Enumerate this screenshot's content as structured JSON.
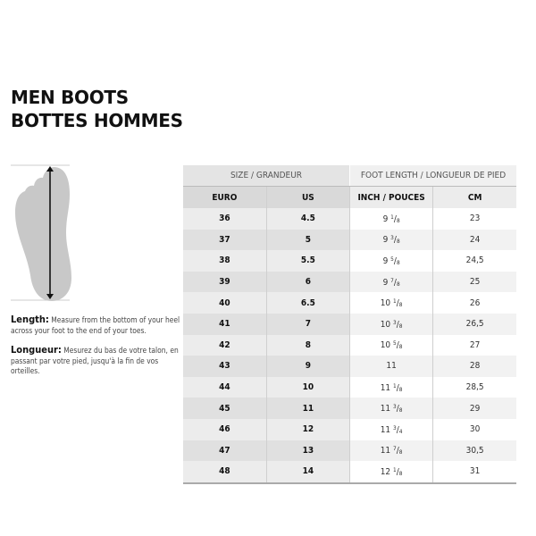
{
  "title": {
    "line1": "MEN BOOTS",
    "line2": "BOTTES HOMMES"
  },
  "measure": {
    "en_label": "Length:",
    "en_text": "Measure from the bottom of your heel across your foot to the end of your toes.",
    "fr_label": "Longueur:",
    "fr_text": "Mesurez du bas de votre talon, en passant par votre pied, jusqu'à la fin de vos orteilles."
  },
  "table": {
    "group_headers": [
      "SIZE / GRANDEUR",
      "FOOT LENGTH / LONGUEUR DE PIED"
    ],
    "columns": [
      "EURO",
      "US",
      "INCH / POUCES",
      "CM"
    ],
    "rows": [
      {
        "euro": "36",
        "us": "4.5",
        "inch": {
          "whole": "9",
          "num": "1",
          "den": "8"
        },
        "cm": "23"
      },
      {
        "euro": "37",
        "us": "5",
        "inch": {
          "whole": "9",
          "num": "3",
          "den": "8"
        },
        "cm": "24"
      },
      {
        "euro": "38",
        "us": "5.5",
        "inch": {
          "whole": "9",
          "num": "5",
          "den": "8"
        },
        "cm": "24,5"
      },
      {
        "euro": "39",
        "us": "6",
        "inch": {
          "whole": "9",
          "num": "7",
          "den": "8"
        },
        "cm": "25"
      },
      {
        "euro": "40",
        "us": "6.5",
        "inch": {
          "whole": "10",
          "num": "1",
          "den": "8"
        },
        "cm": "26"
      },
      {
        "euro": "41",
        "us": "7",
        "inch": {
          "whole": "10",
          "num": "3",
          "den": "8"
        },
        "cm": "26,5"
      },
      {
        "euro": "42",
        "us": "8",
        "inch": {
          "whole": "10",
          "num": "5",
          "den": "8"
        },
        "cm": "27"
      },
      {
        "euro": "43",
        "us": "9",
        "inch": {
          "whole": "11"
        },
        "cm": "28"
      },
      {
        "euro": "44",
        "us": "10",
        "inch": {
          "whole": "11",
          "num": "1",
          "den": "8"
        },
        "cm": "28,5"
      },
      {
        "euro": "45",
        "us": "11",
        "inch": {
          "whole": "11",
          "num": "3",
          "den": "8"
        },
        "cm": "29"
      },
      {
        "euro": "46",
        "us": "12",
        "inch": {
          "whole": "11",
          "num": "3",
          "den": "4"
        },
        "cm": "30"
      },
      {
        "euro": "47",
        "us": "13",
        "inch": {
          "whole": "11",
          "num": "7",
          "den": "8"
        },
        "cm": "30,5"
      },
      {
        "euro": "48",
        "us": "14",
        "inch": {
          "whole": "12",
          "num": "1",
          "den": "8"
        },
        "cm": "31"
      }
    ]
  }
}
